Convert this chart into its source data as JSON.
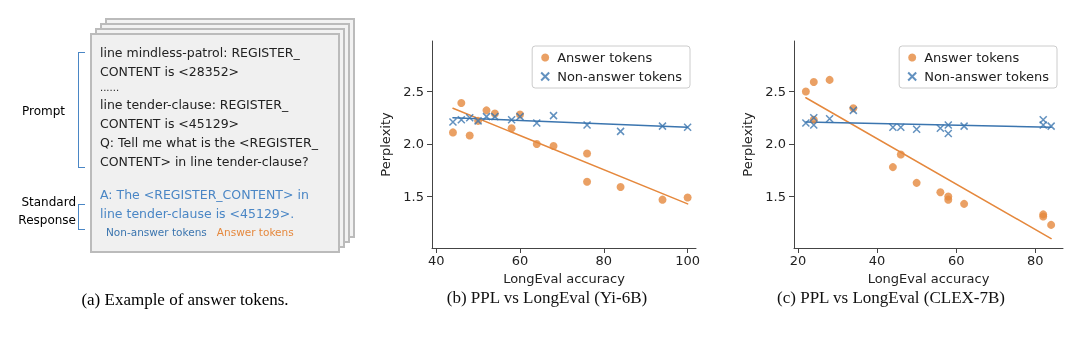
{
  "chart_data": [
    {
      "type": "other",
      "title": "(a) Example of answer tokens.",
      "annotations": [
        "Prompt",
        "Standard Response",
        "line mindless-patrol: REGISTER_",
        "CONTENT is <28352>",
        "......",
        "line tender-clause: REGISTER_",
        "CONTENT is <45129>",
        "Q: Tell me what is the <REGISTER_",
        "CONTENT> in line tender-clause?",
        "A: The <REGISTER_CONTENT> in",
        "line tender-clause is <45129>.",
        "Non-answer tokens",
        "Answer tokens"
      ]
    },
    {
      "type": "scatter",
      "title": "(b) PPL vs LongEval (Yi-6B)",
      "xlabel": "LongEval accuracy",
      "ylabel": "Perplexity",
      "xlim": [
        39,
        102
      ],
      "ylim": [
        1.01,
        2.98
      ],
      "xticks": [
        40,
        60,
        80,
        100
      ],
      "yticks": [
        {
          "value": 1.5,
          "label": "1.5"
        },
        {
          "value": 2,
          "label": "2.0"
        },
        {
          "value": 2.5,
          "label": "2.5"
        }
      ],
      "grid": false,
      "legend": "top right",
      "series": [
        {
          "name": "Answer tokens",
          "color": "#e5883d",
          "marker": "circle",
          "x": [
            44,
            46,
            48,
            50,
            52,
            54,
            58,
            60,
            64,
            68,
            76,
            76,
            84,
            94,
            100
          ],
          "values": [
            2.11,
            2.39,
            2.08,
            2.22,
            2.32,
            2.29,
            2.15,
            2.28,
            2.0,
            1.98,
            1.91,
            1.64,
            1.59,
            1.47,
            1.49
          ]
        },
        {
          "name": "Non-answer tokens",
          "color": "#3b75af",
          "marker": "cross",
          "x": [
            44,
            46,
            48,
            50,
            52,
            54,
            58,
            60,
            64,
            68,
            76,
            84,
            94,
            100
          ],
          "values": [
            2.21,
            2.23,
            2.25,
            2.22,
            2.26,
            2.26,
            2.23,
            2.26,
            2.2,
            2.27,
            2.18,
            2.12,
            2.17,
            2.16
          ]
        },
        {
          "type": "line",
          "color": "#e5883d",
          "x": [
            44,
            100
          ],
          "values": [
            2.34,
            1.43
          ]
        },
        {
          "type": "line",
          "color": "#3b75af",
          "x": [
            44,
            100
          ],
          "values": [
            2.25,
            2.16
          ]
        }
      ]
    },
    {
      "type": "scatter",
      "title": "(c) PPL vs LongEval (CLEX-7B)",
      "xlabel": "LongEval accuracy",
      "ylabel": "Perplexity",
      "xlim": [
        19,
        87
      ],
      "ylim": [
        1.01,
        2.98
      ],
      "xticks": [
        20,
        40,
        60,
        80
      ],
      "yticks": [
        {
          "value": 1.5,
          "label": "1.5"
        },
        {
          "value": 2,
          "label": "2.0"
        },
        {
          "value": 2.5,
          "label": "2.5"
        }
      ],
      "grid": false,
      "legend": "top right",
      "series": [
        {
          "name": "Answer tokens",
          "color": "#e5883d",
          "marker": "circle",
          "x": [
            22,
            24,
            24,
            28,
            34,
            44,
            46,
            50,
            56,
            58,
            58,
            62,
            82,
            82,
            84
          ],
          "values": [
            2.5,
            2.59,
            2.23,
            2.61,
            2.34,
            1.78,
            1.9,
            1.63,
            1.54,
            1.5,
            1.47,
            1.43,
            1.33,
            1.31,
            1.23
          ]
        },
        {
          "name": "Non-answer tokens",
          "color": "#3b75af",
          "marker": "cross",
          "x": [
            22,
            24,
            24,
            28,
            34,
            44,
            46,
            50,
            56,
            58,
            58,
            62,
            82,
            82,
            84
          ],
          "values": [
            2.2,
            2.25,
            2.18,
            2.24,
            2.32,
            2.16,
            2.16,
            2.14,
            2.15,
            2.18,
            2.1,
            2.17,
            2.23,
            2.18,
            2.17
          ]
        },
        {
          "type": "line",
          "color": "#e5883d",
          "x": [
            22,
            84
          ],
          "values": [
            2.44,
            1.1
          ]
        },
        {
          "type": "line",
          "color": "#3b75af",
          "x": [
            22,
            84
          ],
          "values": [
            2.21,
            2.16
          ]
        }
      ]
    }
  ]
}
